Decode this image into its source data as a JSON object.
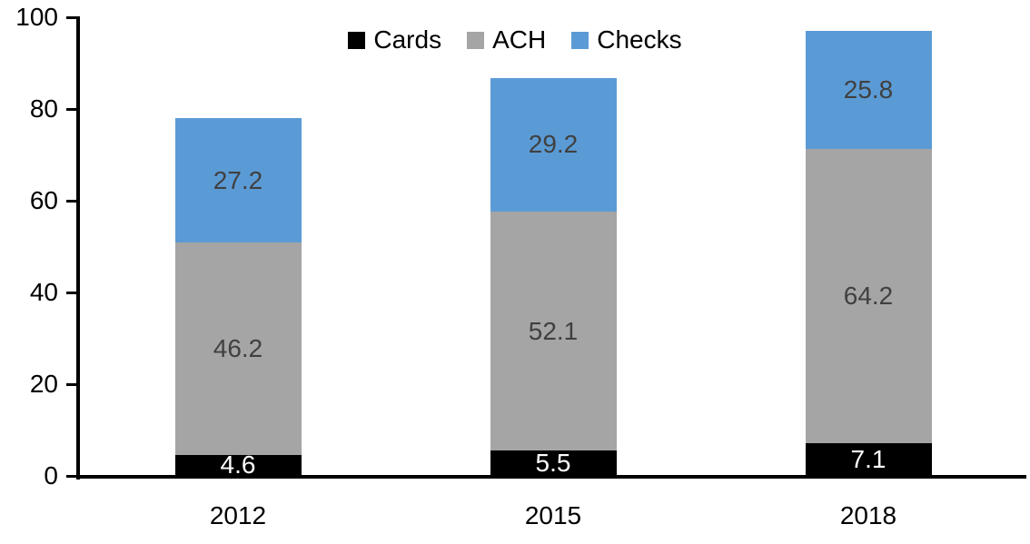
{
  "chart_data": {
    "type": "bar",
    "stacked": true,
    "title": "",
    "xlabel": "",
    "ylabel": "",
    "categories": [
      "2012",
      "2015",
      "2018"
    ],
    "series": [
      {
        "name": "Cards",
        "color": "#000000",
        "label_color": "#ffffff",
        "values": [
          4.6,
          5.5,
          7.1
        ]
      },
      {
        "name": "ACH",
        "color": "#a5a5a5",
        "label_color": "#404040",
        "values": [
          46.2,
          52.1,
          64.2
        ]
      },
      {
        "name": "Checks",
        "color": "#5b9bd5",
        "label_color": "#404040",
        "values": [
          27.2,
          29.2,
          25.8
        ]
      }
    ],
    "y_ticks": [
      0,
      20,
      40,
      60,
      80,
      100
    ],
    "ylim": [
      0,
      100
    ],
    "grid": false,
    "legend_position": "top-center",
    "axis_color": "#000000"
  }
}
